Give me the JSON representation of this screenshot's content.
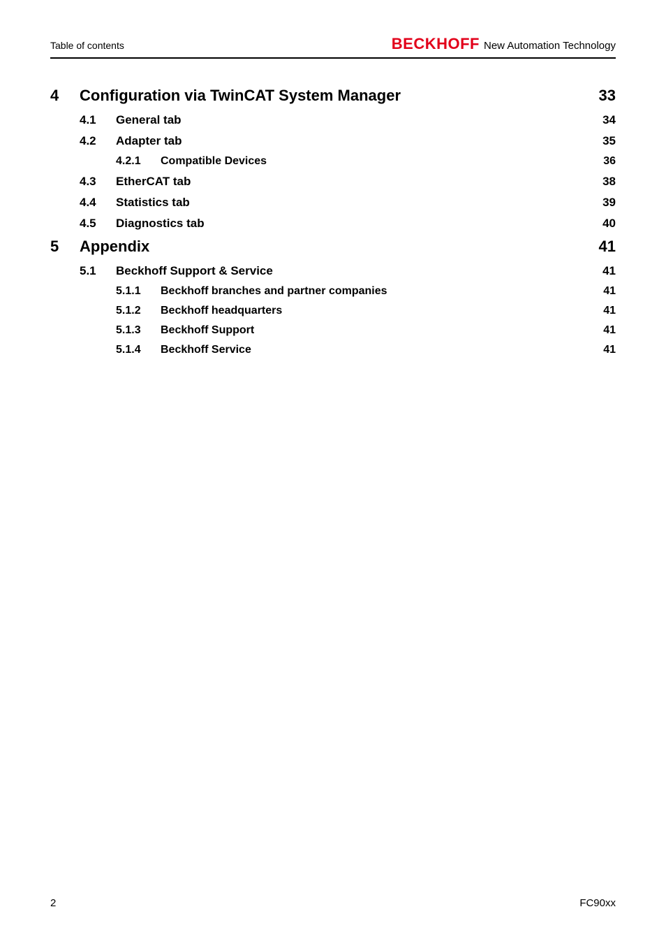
{
  "header": {
    "left": "Table of contents",
    "brand": "BECKHOFF",
    "tagline": "New Automation Technology"
  },
  "toc": [
    {
      "level": 1,
      "num": "4",
      "title": "Configuration via TwinCAT System Manager",
      "page": "33"
    },
    {
      "level": 2,
      "num": "4.1",
      "title": "General tab",
      "page": "34"
    },
    {
      "level": 2,
      "num": "4.2",
      "title": "Adapter tab",
      "page": "35"
    },
    {
      "level": 3,
      "num": "4.2.1",
      "title": "Compatible Devices",
      "page": "36"
    },
    {
      "level": 2,
      "num": "4.3",
      "title": "EtherCAT tab",
      "page": "38"
    },
    {
      "level": 2,
      "num": "4.4",
      "title": "Statistics tab",
      "page": "39"
    },
    {
      "level": 2,
      "num": "4.5",
      "title": "Diagnostics tab",
      "page": "40"
    },
    {
      "level": 1,
      "num": "5",
      "title": "Appendix",
      "page": "41"
    },
    {
      "level": 2,
      "num": "5.1",
      "title": "Beckhoff Support & Service",
      "page": "41"
    },
    {
      "level": 3,
      "num": "5.1.1",
      "title": "Beckhoff branches and partner companies",
      "page": "41"
    },
    {
      "level": 3,
      "num": "5.1.2",
      "title": "Beckhoff headquarters",
      "page": "41"
    },
    {
      "level": 3,
      "num": "5.1.3",
      "title": "Beckhoff Support",
      "page": "41"
    },
    {
      "level": 3,
      "num": "5.1.4",
      "title": "Beckhoff Service",
      "page": "41"
    }
  ],
  "footer": {
    "page_number": "2",
    "doc_id": "FC90xx"
  },
  "colors": {
    "brand_red": "#e2001a",
    "text": "#000000",
    "background": "#ffffff"
  }
}
